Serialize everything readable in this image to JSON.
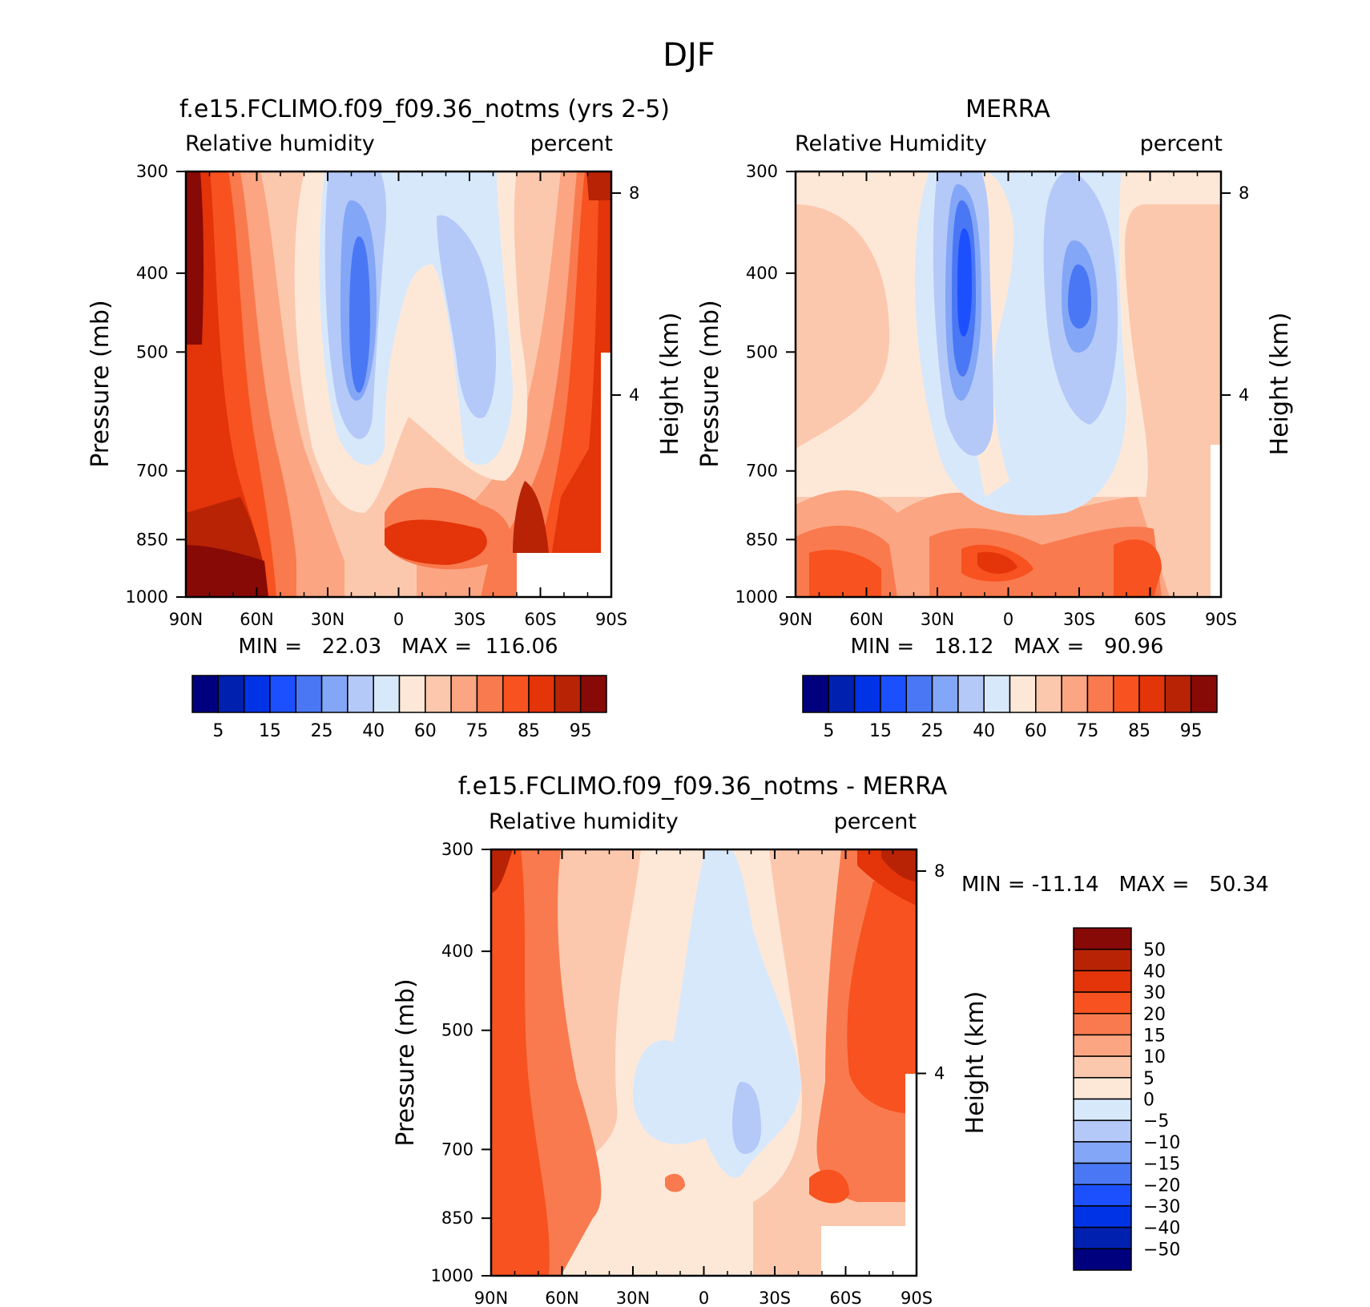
{
  "figure": {
    "title": "DJF"
  },
  "colors": {
    "abs_levels": [
      "#00007f",
      "#0020b0",
      "#0032e6",
      "#1c50ff",
      "#4a78f5",
      "#84a6f7",
      "#b4c9f8",
      "#d8e8fb",
      "#fde8d8",
      "#fcc8ad",
      "#fba582",
      "#f97a4e",
      "#f7521f",
      "#e3340a",
      "#b82306",
      "#870a06"
    ],
    "diff_levels": [
      "#00007f",
      "#0020b0",
      "#0032e6",
      "#1c50ff",
      "#4a78f5",
      "#84a6f7",
      "#b4c9f8",
      "#d8e8fb",
      "#fde8d8",
      "#fcc8ad",
      "#fba582",
      "#f97a4e",
      "#f7521f",
      "#e3340a",
      "#b82306",
      "#870a06"
    ]
  },
  "chart_data": [
    {
      "type": "heatmap",
      "title": "f.e15.FCLIMO.f09_f09.36_notms (yrs 2-5)",
      "subtitle_left": "Relative humidity",
      "subtitle_right": "percent",
      "ylabel": "Pressure (mb)",
      "ylabel_right": "Height (km)",
      "x_ticks": [
        "90N",
        "60N",
        "30N",
        "0",
        "30S",
        "60S",
        "90S"
      ],
      "y_ticks": [
        "300",
        "400",
        "500",
        "700",
        "850",
        "1000"
      ],
      "y_right_ticks": [
        "8",
        "4"
      ],
      "stats": "MIN =   22.03   MAX =  116.06",
      "colorbar_labels": [
        "5",
        "15",
        "25",
        "40",
        "60",
        "75",
        "85",
        "95"
      ],
      "min": 22.03,
      "max": 116.06
    },
    {
      "type": "heatmap",
      "title": "MERRA",
      "subtitle_left": "Relative Humidity",
      "subtitle_right": "percent",
      "ylabel": "Pressure (mb)",
      "ylabel_right": "Height (km)",
      "x_ticks": [
        "90N",
        "60N",
        "30N",
        "0",
        "30S",
        "60S",
        "90S"
      ],
      "y_ticks": [
        "300",
        "400",
        "500",
        "700",
        "850",
        "1000"
      ],
      "y_right_ticks": [
        "8",
        "4"
      ],
      "stats": "MIN =   18.12   MAX =   90.96",
      "colorbar_labels": [
        "5",
        "15",
        "25",
        "40",
        "60",
        "75",
        "85",
        "95"
      ],
      "min": 18.12,
      "max": 90.96
    },
    {
      "type": "heatmap",
      "title": "f.e15.FCLIMO.f09_f09.36_notms - MERRA",
      "subtitle_left": "Relative humidity",
      "subtitle_right": "percent",
      "ylabel": "Pressure (mb)",
      "ylabel_right": "Height (km)",
      "x_ticks": [
        "90N",
        "60N",
        "30N",
        "0",
        "30S",
        "60S",
        "90S"
      ],
      "y_ticks": [
        "300",
        "400",
        "500",
        "700",
        "850",
        "1000"
      ],
      "y_right_ticks": [
        "8",
        "4"
      ],
      "stats": "MIN = -11.14   MAX =   50.34",
      "colorbar_labels": [
        "50",
        "40",
        "30",
        "20",
        "15",
        "10",
        "5",
        "0",
        "-5",
        "-10",
        "-15",
        "-20",
        "-30",
        "-40",
        "-50"
      ],
      "min": -11.14,
      "max": 50.34
    }
  ]
}
